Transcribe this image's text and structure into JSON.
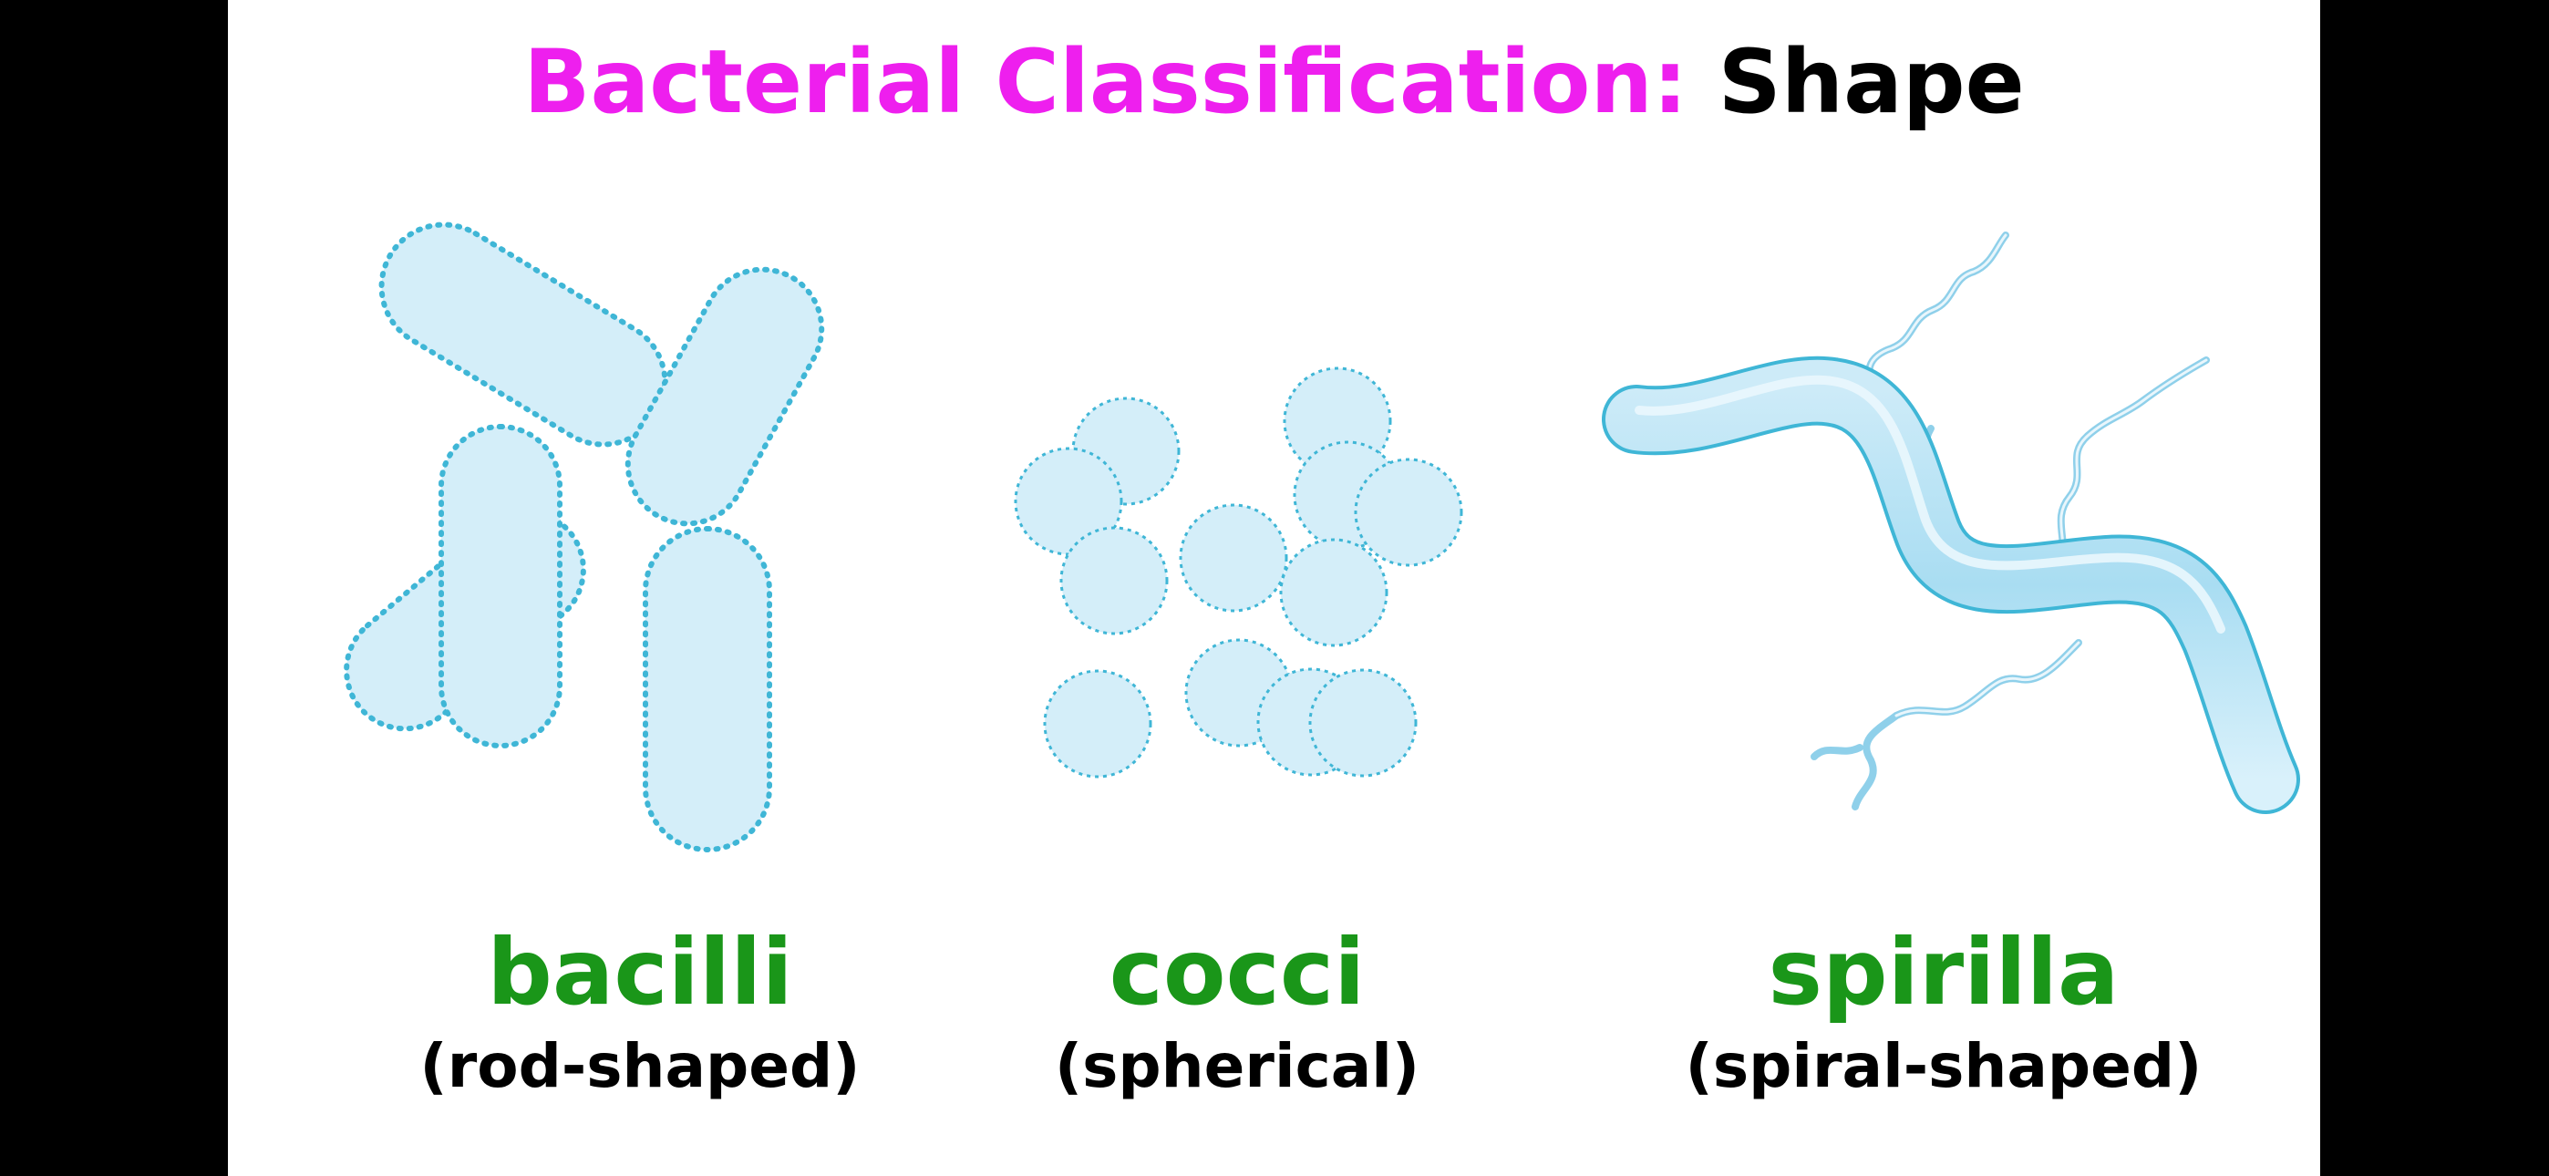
{
  "title": {
    "prefix": "Bacterial Classification:",
    "suffix": "Shape"
  },
  "colors": {
    "title_accent": "#EE1FEE",
    "label_green": "#1A9619",
    "cell_fill": "#D4EEF9",
    "cell_stroke": "#3FB6D6"
  },
  "shapes": [
    {
      "name": "bacilli",
      "description": "(rod-shaped)"
    },
    {
      "name": "cocci",
      "description": "(spherical)"
    },
    {
      "name": "spirilla",
      "description": "(spiral-shaped)"
    }
  ]
}
